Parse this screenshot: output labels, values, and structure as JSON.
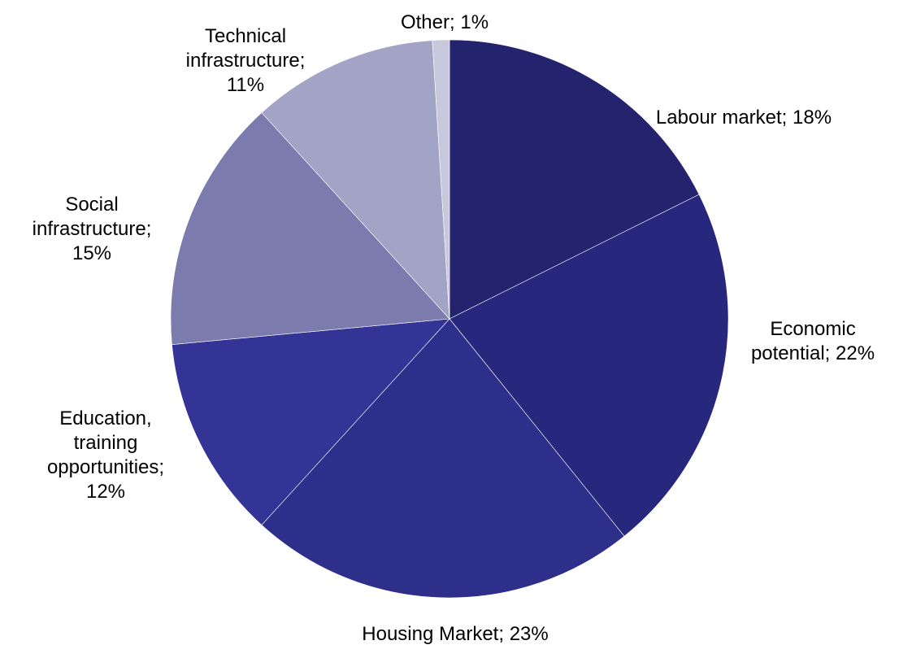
{
  "chart_data": {
    "type": "pie",
    "categories": [
      "Labour market;",
      "Economic potential;",
      "Housing Market;",
      "Education, training opportunities;",
      "Social infrastructure;",
      "Technical infrastructure;",
      "Other;"
    ],
    "values": [
      18,
      22,
      23,
      12,
      15,
      11,
      1
    ],
    "value_labels": [
      "18%",
      "22%",
      "23%",
      "12%",
      "15%",
      "11%",
      "1%"
    ],
    "colors": [
      "#24246e",
      "#27277e",
      "#2e2e8b",
      "#343496",
      "#7b7bae",
      "#a3a3c5",
      "#c8c8dc"
    ]
  }
}
